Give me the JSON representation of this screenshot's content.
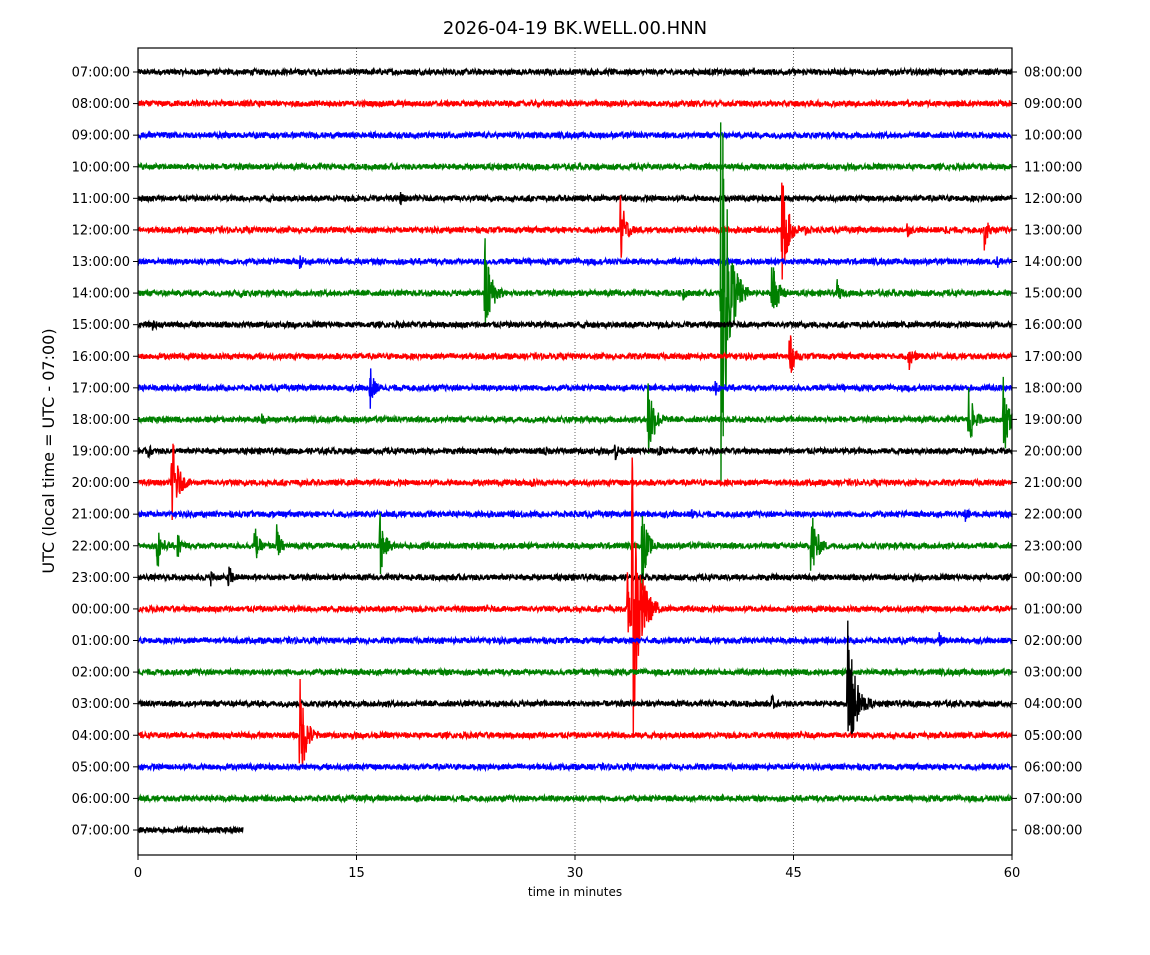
{
  "chart_data": {
    "type": "line",
    "subtype": "helicorder",
    "title": "2026-04-19 BK.WELL.00.HNN",
    "xlabel": "time in minutes",
    "ylabel": "UTC (local time = UTC - 07:00)",
    "xlim": [
      0,
      60
    ],
    "xticks": [
      "0",
      "15",
      "30",
      "45",
      "60"
    ],
    "xtick_values": [
      0,
      15,
      30,
      45,
      60
    ],
    "grid": "vertical dotted at x ticks",
    "colors": [
      "#000000",
      "#ff0000",
      "#0000ff",
      "#008000"
    ],
    "left_labels": [
      "07:00:00",
      "08:00:00",
      "09:00:00",
      "10:00:00",
      "11:00:00",
      "12:00:00",
      "13:00:00",
      "14:00:00",
      "15:00:00",
      "16:00:00",
      "17:00:00",
      "18:00:00",
      "19:00:00",
      "20:00:00",
      "21:00:00",
      "22:00:00",
      "23:00:00",
      "00:00:00",
      "01:00:00",
      "02:00:00",
      "03:00:00",
      "04:00:00",
      "05:00:00",
      "06:00:00",
      "07:00:00"
    ],
    "right_labels": [
      "08:00:00",
      "09:00:00",
      "10:00:00",
      "11:00:00",
      "12:00:00",
      "13:00:00",
      "14:00:00",
      "15:00:00",
      "16:00:00",
      "17:00:00",
      "18:00:00",
      "19:00:00",
      "20:00:00",
      "21:00:00",
      "22:00:00",
      "23:00:00",
      "00:00:00",
      "01:00:00",
      "02:00:00",
      "03:00:00",
      "04:00:00",
      "05:00:00",
      "06:00:00",
      "07:00:00",
      "08:00:00"
    ],
    "noise_amplitude": 0.09,
    "last_trace_end_minute": 7.2,
    "amplitude_units": "trace spacings",
    "events": [
      {
        "row": 4,
        "minute": 18.0,
        "amplitude": 0.18
      },
      {
        "row": 5,
        "minute": 33.1,
        "amplitude": 1.3
      },
      {
        "row": 5,
        "minute": 44.2,
        "amplitude": 1.9
      },
      {
        "row": 5,
        "minute": 45.8,
        "amplitude": 0.2
      },
      {
        "row": 5,
        "minute": 52.8,
        "amplitude": 0.22
      },
      {
        "row": 5,
        "minute": 55.4,
        "amplitude": 0.12
      },
      {
        "row": 5,
        "minute": 58.1,
        "amplitude": 0.6
      },
      {
        "row": 6,
        "minute": 11.1,
        "amplitude": 0.22
      },
      {
        "row": 6,
        "minute": 59.0,
        "amplitude": 0.18
      },
      {
        "row": 7,
        "minute": 7.0,
        "amplitude": 0.12
      },
      {
        "row": 7,
        "minute": 23.8,
        "amplitude": 1.9
      },
      {
        "row": 7,
        "minute": 37.4,
        "amplitude": 0.22
      },
      {
        "row": 7,
        "minute": 40.0,
        "amplitude": 6.8
      },
      {
        "row": 7,
        "minute": 43.5,
        "amplitude": 1.4
      },
      {
        "row": 7,
        "minute": 48.0,
        "amplitude": 0.35
      },
      {
        "row": 8,
        "minute": 1.0,
        "amplitude": 0.12
      },
      {
        "row": 9,
        "minute": 44.7,
        "amplitude": 0.9
      },
      {
        "row": 9,
        "minute": 52.9,
        "amplitude": 0.6
      },
      {
        "row": 10,
        "minute": 15.9,
        "amplitude": 0.8
      },
      {
        "row": 10,
        "minute": 39.6,
        "amplitude": 0.25
      },
      {
        "row": 11,
        "minute": 8.5,
        "amplitude": 0.12
      },
      {
        "row": 11,
        "minute": 35.0,
        "amplitude": 1.7
      },
      {
        "row": 11,
        "minute": 57.0,
        "amplitude": 1.2
      },
      {
        "row": 11,
        "minute": 59.4,
        "amplitude": 1.4
      },
      {
        "row": 12,
        "minute": 0.7,
        "amplitude": 0.2
      },
      {
        "row": 12,
        "minute": 27.9,
        "amplitude": 0.15
      },
      {
        "row": 12,
        "minute": 32.7,
        "amplitude": 0.4
      },
      {
        "row": 12,
        "minute": 35.7,
        "amplitude": 0.25
      },
      {
        "row": 13,
        "minute": 2.3,
        "amplitude": 1.75
      },
      {
        "row": 13,
        "minute": 27.0,
        "amplitude": 0.1
      },
      {
        "row": 14,
        "minute": 38.0,
        "amplitude": 0.12
      },
      {
        "row": 14,
        "minute": 56.8,
        "amplitude": 0.2
      },
      {
        "row": 15,
        "minute": 1.3,
        "amplitude": 0.9
      },
      {
        "row": 15,
        "minute": 2.7,
        "amplitude": 0.5
      },
      {
        "row": 15,
        "minute": 8.0,
        "amplitude": 0.7
      },
      {
        "row": 15,
        "minute": 9.5,
        "amplitude": 0.7
      },
      {
        "row": 15,
        "minute": 16.6,
        "amplitude": 1.15
      },
      {
        "row": 15,
        "minute": 19.5,
        "amplitude": 0.12
      },
      {
        "row": 15,
        "minute": 34.6,
        "amplitude": 1.4
      },
      {
        "row": 15,
        "minute": 46.2,
        "amplitude": 1.5
      },
      {
        "row": 16,
        "minute": 5.0,
        "amplitude": 0.2
      },
      {
        "row": 16,
        "minute": 6.2,
        "amplitude": 0.5
      },
      {
        "row": 17,
        "minute": 33.6,
        "amplitude": 1.2
      },
      {
        "row": 17,
        "minute": 33.9,
        "amplitude": 4.6
      },
      {
        "row": 18,
        "minute": 55.0,
        "amplitude": 0.2
      },
      {
        "row": 20,
        "minute": 43.5,
        "amplitude": 0.22
      },
      {
        "row": 20,
        "minute": 48.7,
        "amplitude": 2.7
      },
      {
        "row": 21,
        "minute": 11.1,
        "amplitude": 1.9
      }
    ]
  }
}
